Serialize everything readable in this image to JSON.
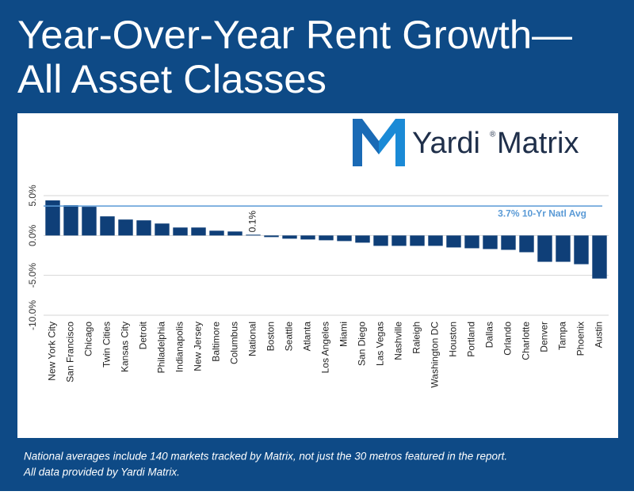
{
  "title_lines": [
    "Year-Over-Year Rent Growth—",
    "All Asset Classes"
  ],
  "logo": {
    "brand": "Yardi",
    "mark": "®",
    "product": "Matrix"
  },
  "footnotes": [
    "National averages include 140 markets tracked by Matrix, not just the 30 metros featured in the report.",
    "All data provided by Yardi Matrix."
  ],
  "chart_data": {
    "type": "bar",
    "categories": [
      "New York City",
      "San Francisco",
      "Chicago",
      "Twin Cities",
      "Kansas City",
      "Detroit",
      "Philadelphia",
      "Indianapolis",
      "New Jersey",
      "Baltimore",
      "Columbus",
      "National",
      "Boston",
      "Seattle",
      "Atlanta",
      "Los Angeles",
      "Miami",
      "San Diego",
      "Las Vegas",
      "Nashville",
      "Raleigh",
      "Washington DC",
      "Houston",
      "Portland",
      "Dallas",
      "Orlando",
      "Charlotte",
      "Denver",
      "Tampa",
      "Phoenix",
      "Austin"
    ],
    "values": [
      4.4,
      3.8,
      3.6,
      2.4,
      2.0,
      1.9,
      1.5,
      1.0,
      1.0,
      0.6,
      0.5,
      0.1,
      -0.2,
      -0.4,
      -0.5,
      -0.6,
      -0.7,
      -0.9,
      -1.3,
      -1.3,
      -1.3,
      -1.3,
      -1.5,
      -1.6,
      -1.7,
      -1.8,
      -2.1,
      -3.3,
      -3.3,
      -3.6,
      -5.4
    ],
    "value_labels": [
      null,
      null,
      null,
      null,
      null,
      null,
      null,
      null,
      null,
      null,
      null,
      "0.1%",
      null,
      null,
      null,
      null,
      null,
      null,
      null,
      null,
      null,
      null,
      null,
      null,
      null,
      null,
      null,
      null,
      null,
      null,
      null
    ],
    "color": "#0f3f78",
    "ylim": [
      -10,
      5
    ],
    "yticks": [
      {
        "value": -10,
        "label": "-10.0%"
      },
      {
        "value": -5,
        "label": "-5.0%"
      },
      {
        "value": 0,
        "label": "0.0%"
      },
      {
        "value": 5,
        "label": "5.0%"
      }
    ],
    "grid": true,
    "reference_line": {
      "value": 3.7,
      "label": "3.7% 10-Yr Natl Avg",
      "color": "#5a9ad6"
    }
  }
}
